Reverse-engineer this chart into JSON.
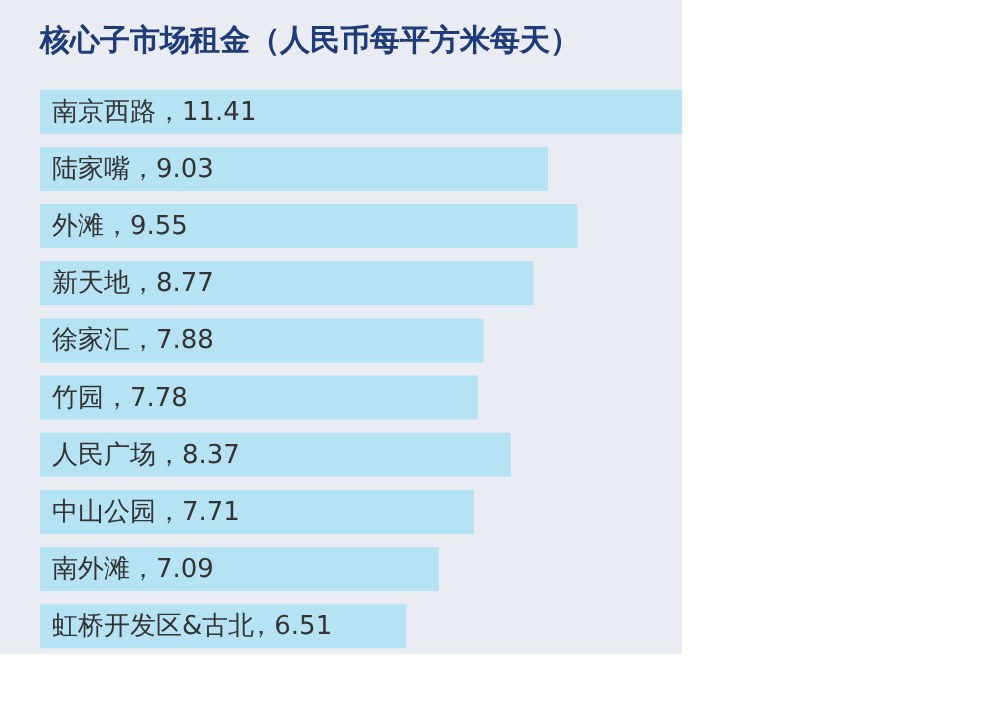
{
  "chart_data": {
    "type": "bar",
    "orientation": "horizontal",
    "title": "核心子市场租金（人民币每平方米每天）",
    "categories": [
      "南京西路",
      "陆家嘴",
      "外滩",
      "新天地",
      "徐家汇",
      "竹园",
      "人民广场",
      "中山公园",
      "南外滩",
      "虹桥开发区&古北"
    ],
    "values": [
      11.41,
      9.03,
      9.55,
      8.77,
      7.88,
      7.78,
      8.37,
      7.71,
      7.09,
      6.51
    ],
    "value_labels": [
      "，11.41",
      "，9.03",
      "，9.55",
      "，8.77",
      "，7.88",
      "，7.78",
      "，8.37",
      "，7.71",
      "，7.09",
      "，6.51"
    ],
    "color": "#b5e3f3"
  }
}
